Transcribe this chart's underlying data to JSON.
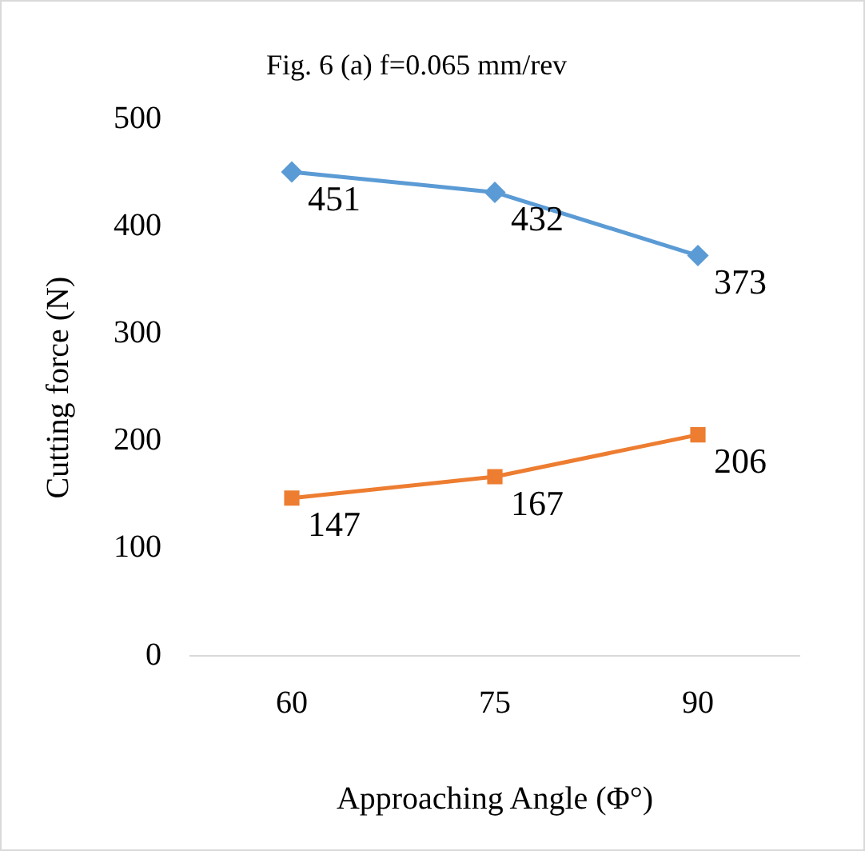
{
  "chart_data": {
    "type": "line",
    "title": "Fig. 6 (a) f=0.065 mm/rev",
    "xlabel": "Approaching Angle (Φ°)",
    "ylabel": "Cutting force (N)",
    "categories": [
      "60",
      "75",
      "90"
    ],
    "series": [
      {
        "color": "#5b9bd5",
        "marker": "diamond",
        "values": [
          451,
          432,
          373
        ]
      },
      {
        "color": "#ed7d31",
        "marker": "square",
        "values": [
          147,
          167,
          206
        ]
      }
    ],
    "ylim": [
      0,
      500
    ],
    "yticks": [
      0,
      100,
      200,
      300,
      400,
      500
    ],
    "grid": false,
    "legend": false,
    "data_labels": true,
    "line_style": "solid"
  }
}
